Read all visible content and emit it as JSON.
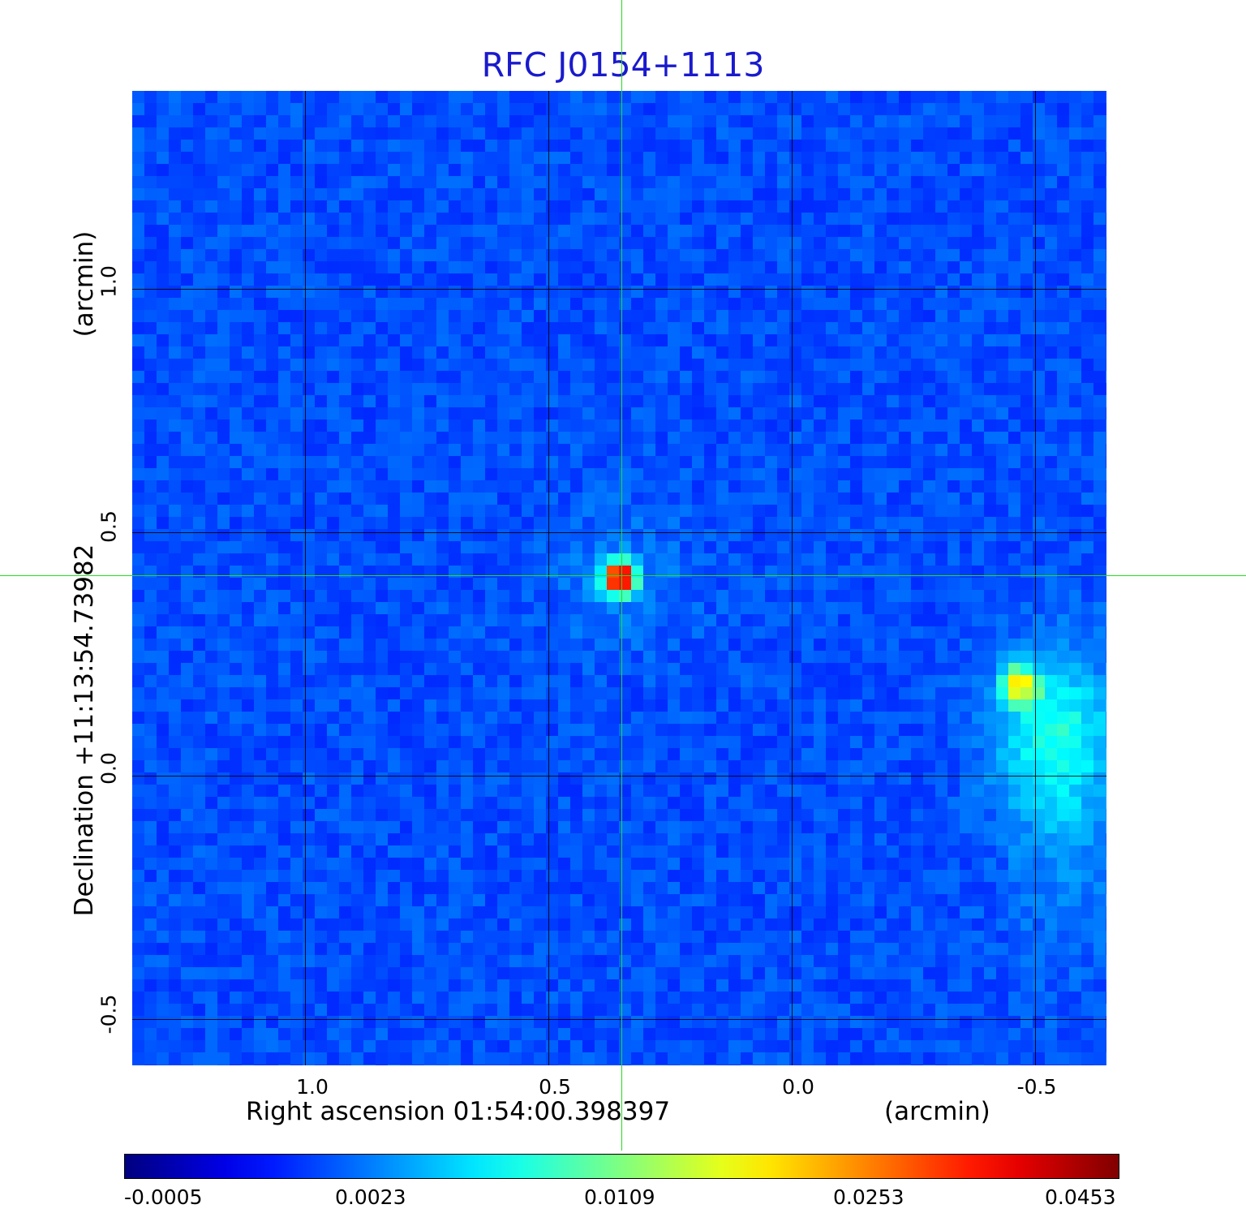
{
  "title": "RFC J0154+1113",
  "axes": {
    "x_label": "Right ascension  01:54:00.398397",
    "x_unit": "(arcmin)",
    "y_label": "Declination  +11:13:54.73982",
    "y_unit": "(arcmin)",
    "x_ticks": [
      "1.0",
      "0.5",
      "0.0",
      "-0.5"
    ],
    "y_ticks": [
      "1.0",
      "0.5",
      "0.0",
      "-0.5"
    ],
    "x_range_arcmin": [
      1.35,
      -0.65
    ],
    "y_range_arcmin": [
      -0.59,
      1.41
    ]
  },
  "colorbar": {
    "colormap": "jet",
    "ticks": [
      "-0.0005",
      "0.0023",
      "0.0109",
      "0.0253",
      "0.0453"
    ]
  },
  "image": {
    "background_color": "#2248f0",
    "crosshair_color": "#22dd22",
    "grid_color": "#000000",
    "sources": [
      {
        "description": "target",
        "ra_offset_arcmin": 0.35,
        "dec_offset_arcmin": 0.41,
        "peak": 0.0453
      },
      {
        "description": "secondary",
        "ra_offset_arcmin": -0.47,
        "dec_offset_arcmin": 0.19,
        "peak": 0.0109
      }
    ]
  }
}
